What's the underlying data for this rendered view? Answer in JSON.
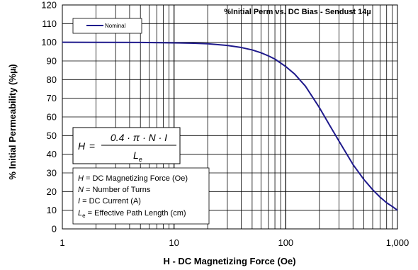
{
  "chart_data": {
    "type": "line",
    "title": "%Initial Perm vs. DC Bias - Sendust  14µ",
    "xlabel": "H - DC Magnetizing Force (Oe)",
    "ylabel": "% Initial Permeability (%µᵢ)",
    "x_scale": "log",
    "xlim": [
      1,
      1000
    ],
    "ylim": [
      0,
      120
    ],
    "x_ticks": [
      "1",
      "10",
      "100",
      "1,000"
    ],
    "y_ticks": [
      "0",
      "10",
      "20",
      "30",
      "40",
      "50",
      "60",
      "70",
      "80",
      "90",
      "100",
      "110",
      "120"
    ],
    "grid": true,
    "legend_position": "top-left",
    "series": [
      {
        "name": "Nominal",
        "color": "#1f1a8c",
        "x": [
          1,
          5,
          10,
          15,
          20,
          30,
          40,
          50,
          60,
          70,
          80,
          100,
          120,
          150,
          200,
          250,
          300,
          400,
          500,
          600,
          700,
          800,
          900,
          1000
        ],
        "y": [
          100,
          99.9,
          99.7,
          99.5,
          99.2,
          98.3,
          97.2,
          95.9,
          94.4,
          92.7,
          91,
          87,
          83,
          76.5,
          65,
          55,
          47,
          34.5,
          26.5,
          21,
          17,
          14,
          12,
          10
        ]
      }
    ],
    "annotations": {
      "formula": {
        "lhs": "H",
        "eq": "=",
        "numerator": "0.4 · π · N · I",
        "denominator": "L",
        "denominator_sub": "e"
      },
      "definitions": [
        {
          "sym": "H",
          "sub": "",
          "text": " = DC Magnetizing Force (Oe)"
        },
        {
          "sym": "N",
          "sub": "",
          "text": " = Number of Turns"
        },
        {
          "sym": "I",
          "sub": "",
          "text": " = DC Current (A)"
        },
        {
          "sym": "L",
          "sub": "e",
          "text": " = Effective Path Length (cm)"
        }
      ]
    }
  }
}
